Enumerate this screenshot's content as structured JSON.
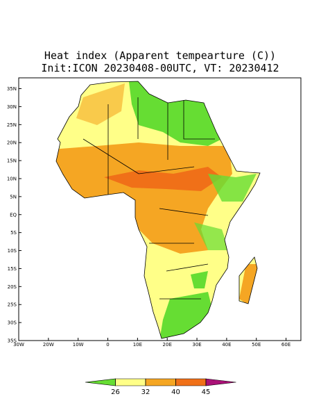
{
  "title": [
    "Heat index (Apparent tempearture (C))",
    "Init:ICON 20230408-00UTC, VT: 20230412"
  ],
  "map": {
    "xlim": [
      -30,
      65
    ],
    "ylim": [
      -35,
      38
    ],
    "xticks": [
      {
        "value": -30,
        "label": "30W"
      },
      {
        "value": -20,
        "label": "20W"
      },
      {
        "value": -10,
        "label": "10W"
      },
      0,
      {
        "value": 10,
        "label": "10E"
      },
      {
        "value": 20,
        "label": "20E"
      },
      {
        "value": 30,
        "label": "30E"
      },
      {
        "value": 40,
        "label": "40E"
      },
      {
        "value": 50,
        "label": "50E"
      },
      {
        "value": 60,
        "label": "60E"
      }
    ],
    "yticks": [
      {
        "value": -35,
        "label": "35S"
      },
      {
        "value": -30,
        "label": "30S"
      },
      {
        "value": -25,
        "label": "25S"
      },
      {
        "value": -20,
        "label": "20S"
      },
      {
        "value": -15,
        "label": "15S"
      },
      {
        "value": -10,
        "label": "10S"
      },
      {
        "value": -5,
        "label": "5S"
      },
      {
        "value": 0,
        "label": "EQ"
      },
      {
        "value": 5,
        "label": "5N"
      },
      {
        "value": 10,
        "label": "10N"
      },
      {
        "value": 15,
        "label": "15N"
      },
      {
        "value": 20,
        "label": "20N"
      },
      {
        "value": 25,
        "label": "25N"
      },
      {
        "value": 30,
        "label": "30N"
      },
      {
        "value": 35,
        "label": "35N"
      }
    ]
  },
  "colorbar": {
    "levels": [
      26,
      32,
      40,
      45
    ],
    "colors": [
      "#66dd33",
      "#ffff88",
      "#f5a623",
      "#f07018",
      "#aa1177"
    ]
  }
}
